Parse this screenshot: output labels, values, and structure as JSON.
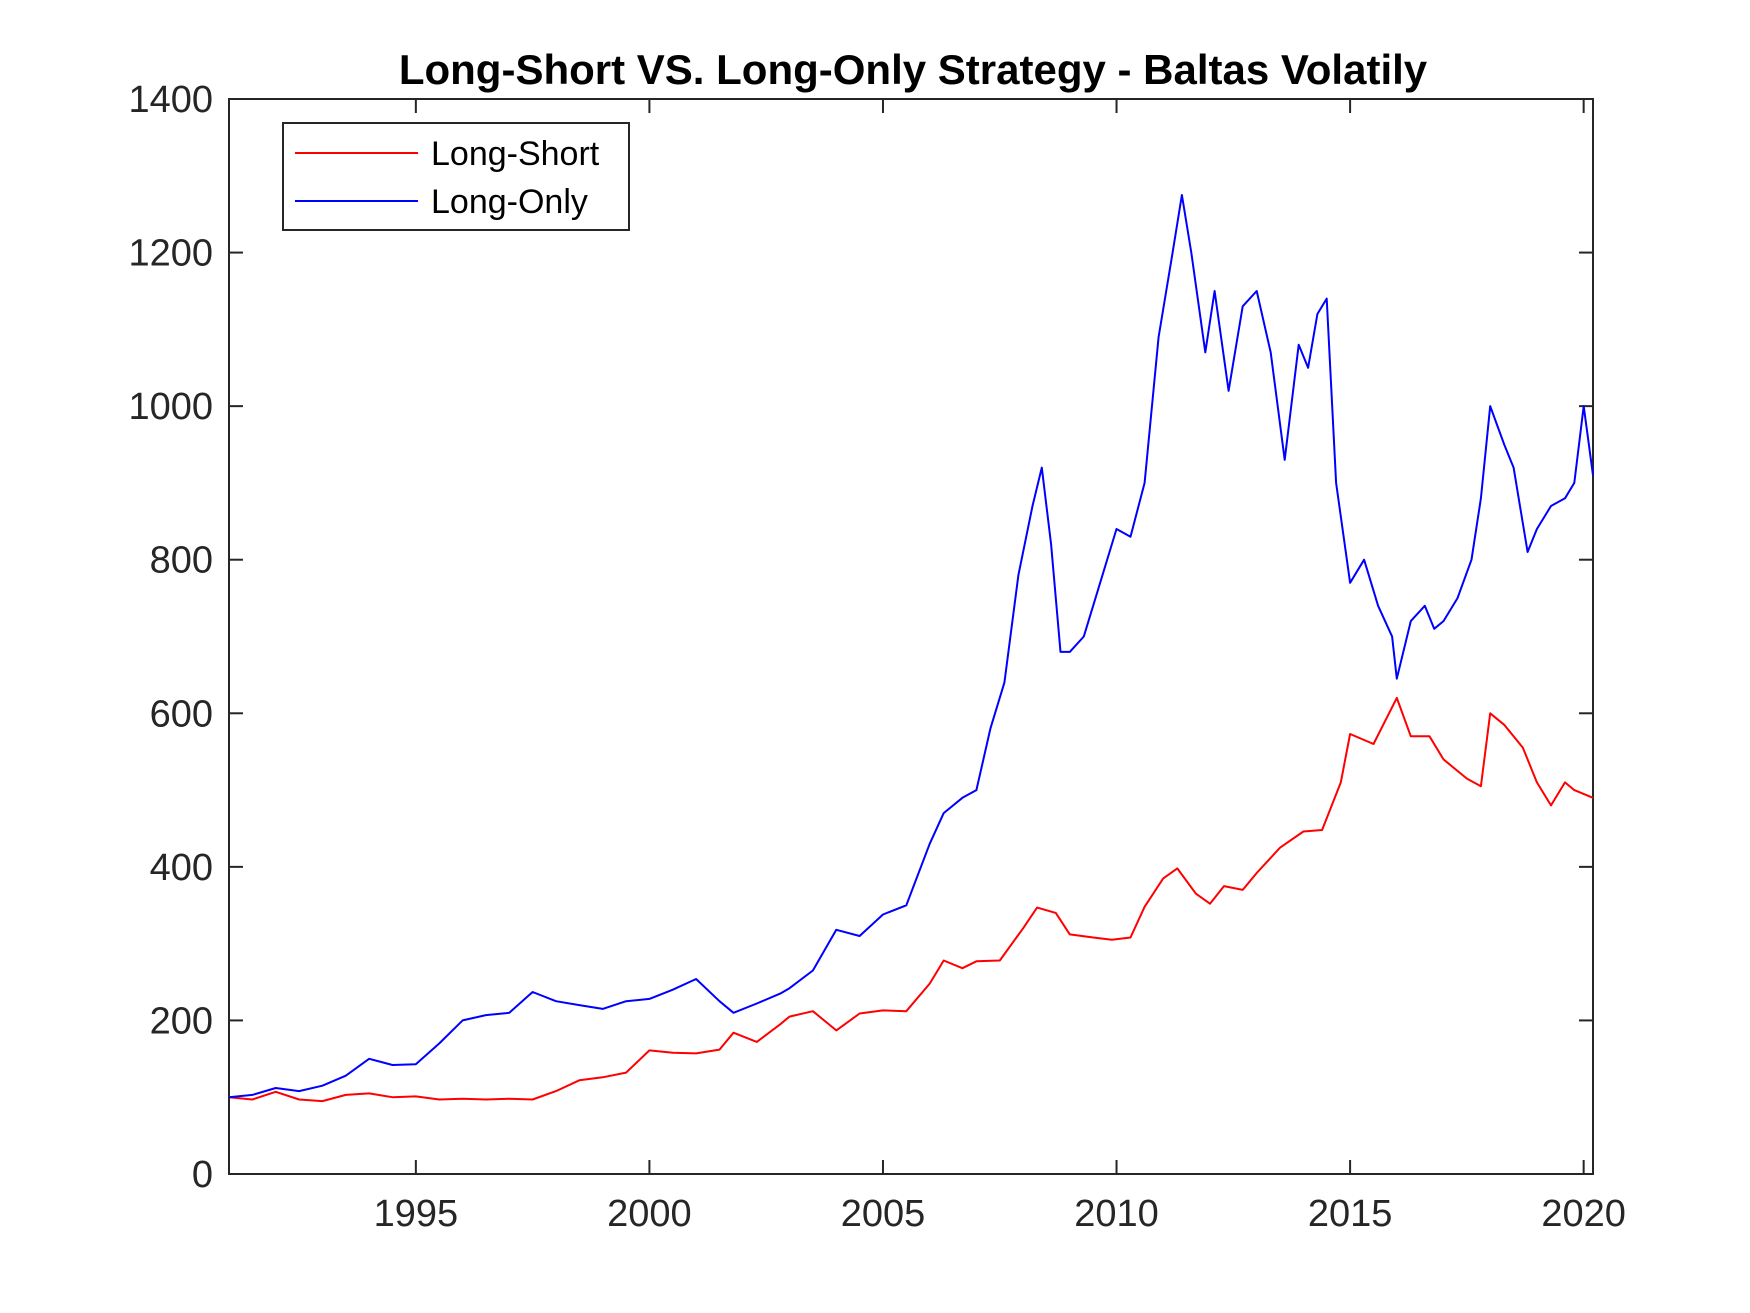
{
  "chart_data": {
    "type": "line",
    "title": "Long-Short VS. Long-Only Strategy - Baltas Volatily",
    "xlabel": "",
    "ylabel": "",
    "xlim": [
      1991,
      2020.2
    ],
    "ylim": [
      0,
      1400
    ],
    "xticks": [
      1995,
      2000,
      2005,
      2010,
      2015,
      2020
    ],
    "yticks": [
      0,
      200,
      400,
      600,
      800,
      1000,
      1200,
      1400
    ],
    "grid": false,
    "legend_position": "top-left",
    "series": [
      {
        "name": "Long-Short",
        "color": "#ff0000",
        "x": [
          1991.0,
          1991.5,
          1992.0,
          1992.5,
          1993.0,
          1993.5,
          1994.0,
          1994.5,
          1995.0,
          1995.5,
          1996.0,
          1996.5,
          1997.0,
          1997.5,
          1998.0,
          1998.5,
          1999.0,
          1999.5,
          2000.0,
          2000.5,
          2001.0,
          2001.5,
          2001.8,
          2002.3,
          2002.8,
          2003.0,
          2003.5,
          2004.0,
          2004.5,
          2005.0,
          2005.5,
          2006.0,
          2006.3,
          2006.7,
          2007.0,
          2007.5,
          2008.0,
          2008.3,
          2008.7,
          2009.0,
          2009.5,
          2009.9,
          2010.3,
          2010.6,
          2011.0,
          2011.3,
          2011.7,
          2012.0,
          2012.3,
          2012.7,
          2013.0,
          2013.5,
          2014.0,
          2014.4,
          2014.8,
          2015.0,
          2015.5,
          2016.0,
          2016.3,
          2016.7,
          2017.0,
          2017.5,
          2017.8,
          2018.0,
          2018.3,
          2018.7,
          2019.0,
          2019.3,
          2019.6,
          2019.8,
          2020.2
        ],
        "y": [
          100,
          97,
          107,
          97,
          95,
          103,
          105,
          100,
          101,
          97,
          98,
          97,
          98,
          97,
          108,
          122,
          126,
          132,
          161,
          158,
          157,
          162,
          184,
          172,
          195,
          205,
          212,
          187,
          209,
          213,
          212,
          248,
          278,
          268,
          277,
          278,
          320,
          347,
          340,
          312,
          308,
          305,
          308,
          348,
          385,
          398,
          365,
          352,
          375,
          370,
          392,
          425,
          446,
          448,
          510,
          573,
          560,
          620,
          570,
          570,
          540,
          515,
          505,
          600,
          585,
          555,
          510,
          480,
          510,
          500,
          490
        ]
      },
      {
        "name": "Long-Only",
        "color": "#0000ff",
        "x": [
          1991.0,
          1991.5,
          1992.0,
          1992.5,
          1993.0,
          1993.5,
          1994.0,
          1994.5,
          1995.0,
          1995.5,
          1996.0,
          1996.5,
          1997.0,
          1997.5,
          1998.0,
          1998.5,
          1999.0,
          1999.5,
          2000.0,
          2000.5,
          2001.0,
          2001.5,
          2001.8,
          2002.3,
          2002.8,
          2003.0,
          2003.5,
          2004.0,
          2004.5,
          2005.0,
          2005.5,
          2006.0,
          2006.3,
          2006.7,
          2007.0,
          2007.3,
          2007.6,
          2007.9,
          2008.2,
          2008.4,
          2008.6,
          2008.8,
          2009.0,
          2009.3,
          2009.7,
          2010.0,
          2010.3,
          2010.6,
          2010.9,
          2011.2,
          2011.4,
          2011.6,
          2011.9,
          2012.1,
          2012.4,
          2012.7,
          2013.0,
          2013.3,
          2013.6,
          2013.9,
          2014.1,
          2014.3,
          2014.5,
          2014.7,
          2015.0,
          2015.3,
          2015.6,
          2015.9,
          2016.0,
          2016.3,
          2016.6,
          2016.8,
          2017.0,
          2017.3,
          2017.6,
          2017.8,
          2018.0,
          2018.3,
          2018.5,
          2018.8,
          2019.0,
          2019.3,
          2019.6,
          2019.8,
          2020.0,
          2020.2
        ],
        "y": [
          100,
          103,
          112,
          108,
          115,
          128,
          150,
          142,
          143,
          170,
          200,
          207,
          210,
          237,
          225,
          220,
          215,
          225,
          228,
          240,
          254,
          225,
          210,
          222,
          235,
          242,
          265,
          318,
          310,
          338,
          350,
          430,
          470,
          490,
          500,
          580,
          640,
          780,
          870,
          920,
          820,
          680,
          680,
          700,
          780,
          840,
          830,
          900,
          1090,
          1200,
          1275,
          1200,
          1070,
          1150,
          1020,
          1130,
          1150,
          1070,
          930,
          1080,
          1050,
          1120,
          1140,
          900,
          770,
          800,
          740,
          700,
          645,
          720,
          740,
          710,
          720,
          750,
          800,
          880,
          1000,
          950,
          920,
          810,
          840,
          870,
          880,
          900,
          1000,
          910
        ]
      }
    ]
  }
}
